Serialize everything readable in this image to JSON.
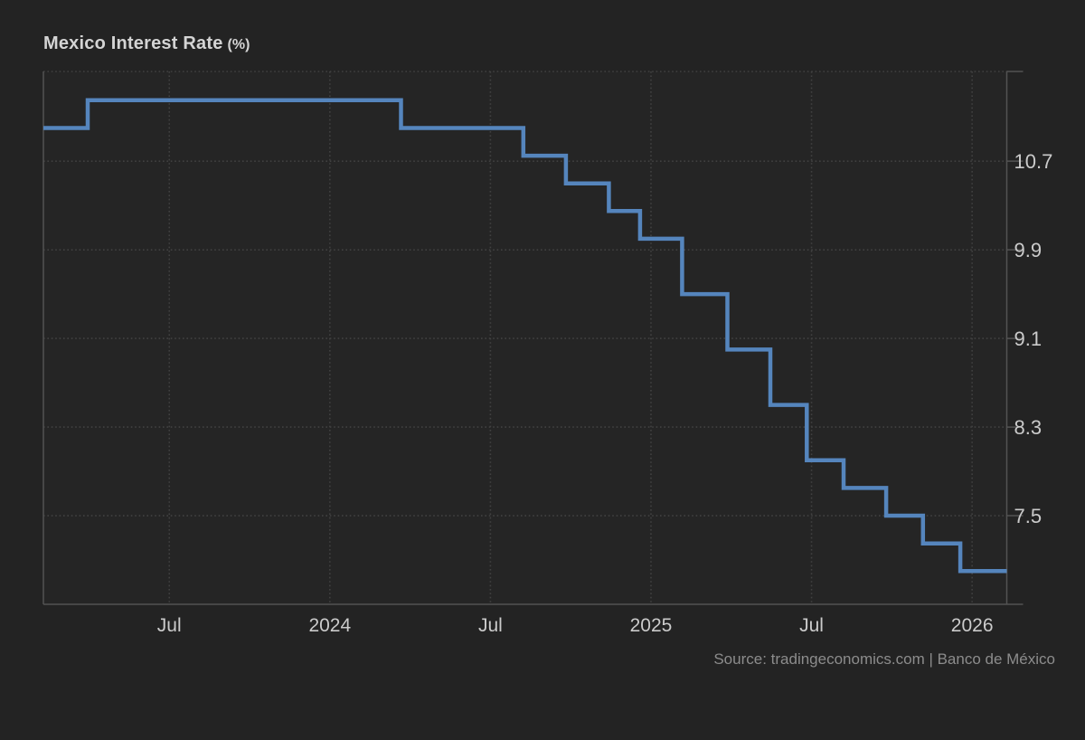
{
  "header": {
    "title": "Mexico Interest Rate",
    "unit": "(%)"
  },
  "footer": {
    "source": "Source: tradingeconomics.com | Banco de México"
  },
  "chart_data": {
    "type": "line",
    "subtype": "step-after",
    "title": "Mexico Interest Rate (%)",
    "ylabel": "Interest Rate (%)",
    "xlabel": "",
    "grid": true,
    "legend_position": "none",
    "line_color": "#5585bd",
    "page_background": "#232323",
    "plot_background": "#252525",
    "grid_color": "#414141",
    "axis_color": "#535353",
    "label_color": "#cbcbcb",
    "x_range": [
      "2023-02-10",
      "2026-02-10"
    ],
    "y_range": [
      6.7,
      11.51
    ],
    "y_ticks": [
      10.7,
      9.9,
      9.1,
      8.3,
      7.5
    ],
    "x_ticks": [
      {
        "label": "Jul",
        "date": "2023-07-01"
      },
      {
        "label": "2024",
        "date": "2024-01-01"
      },
      {
        "label": "Jul",
        "date": "2024-07-01"
      },
      {
        "label": "2025",
        "date": "2025-01-01"
      },
      {
        "label": "Jul",
        "date": "2025-07-01"
      },
      {
        "label": "2026",
        "date": "2026-01-01"
      }
    ],
    "series": [
      {
        "name": "Mexico Interest Rate",
        "unit": "%",
        "points": [
          {
            "date": "2023-02-10",
            "value": 11.0
          },
          {
            "date": "2023-03-30",
            "value": 11.25
          },
          {
            "date": "2024-03-21",
            "value": 11.0
          },
          {
            "date": "2024-08-08",
            "value": 10.75
          },
          {
            "date": "2024-09-26",
            "value": 10.5
          },
          {
            "date": "2024-11-14",
            "value": 10.25
          },
          {
            "date": "2024-12-19",
            "value": 10.0
          },
          {
            "date": "2025-02-06",
            "value": 9.5
          },
          {
            "date": "2025-03-27",
            "value": 9.0
          },
          {
            "date": "2025-05-15",
            "value": 8.5
          },
          {
            "date": "2025-06-26",
            "value": 8.0
          },
          {
            "date": "2025-08-07",
            "value": 7.75
          },
          {
            "date": "2025-09-25",
            "value": 7.5
          },
          {
            "date": "2025-11-06",
            "value": 7.25
          },
          {
            "date": "2025-12-18",
            "value": 7.0
          },
          {
            "date": "2026-02-10",
            "value": 7.0
          }
        ]
      }
    ]
  }
}
